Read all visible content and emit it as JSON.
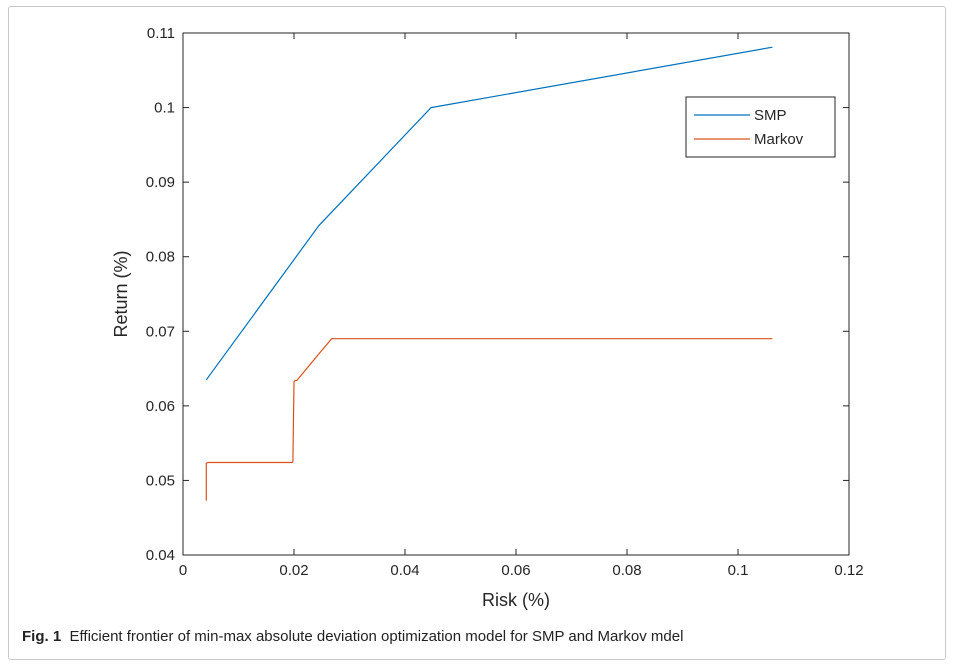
{
  "chart_data": {
    "type": "line",
    "xlabel": "Risk (%)",
    "ylabel": "Return (%)",
    "xlim": [
      0,
      0.12
    ],
    "ylim": [
      0.04,
      0.11
    ],
    "xticks": [
      "0",
      "0.02",
      "0.04",
      "0.06",
      "0.08",
      "0.1",
      "0.12"
    ],
    "yticks": [
      "0.04",
      "0.05",
      "0.06",
      "0.07",
      "0.08",
      "0.09",
      "0.1",
      "0.11"
    ],
    "legend_position": "top-right",
    "grid": false,
    "series": [
      {
        "name": "SMP",
        "color": "#0072BD",
        "x": [
          0.0042,
          0.0245,
          0.0447,
          0.1062
        ],
        "y": [
          0.0635,
          0.0842,
          0.1,
          0.1081
        ]
      },
      {
        "name": "Markov",
        "color": "#D95319",
        "x": [
          0.0042,
          0.0042,
          0.0045,
          0.0197,
          0.0198,
          0.02,
          0.0202,
          0.0205,
          0.0245,
          0.0268,
          0.1062
        ],
        "y": [
          0.0473,
          0.0523,
          0.0524,
          0.0524,
          0.0525,
          0.0632,
          0.0634,
          0.0634,
          0.067,
          0.069,
          0.069
        ]
      }
    ]
  },
  "caption": {
    "label": "Fig. 1",
    "text": "Efficient frontier of min-max absolute deviation optimization model for SMP and Markov mdel"
  }
}
